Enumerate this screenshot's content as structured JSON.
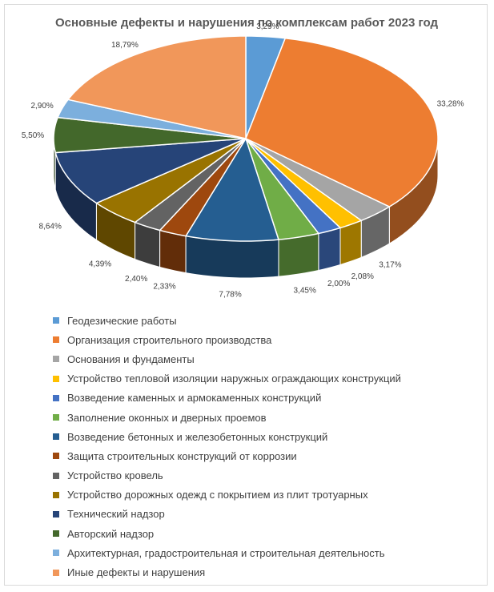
{
  "chart_data": {
    "type": "pie",
    "title": "Основные дефекты и нарушения по комплексам работ 2023 год",
    "legend_position": "bottom",
    "three_d": true,
    "slices": [
      {
        "name": "Геодезические работы",
        "value": 3.29,
        "label": "3,29%",
        "color": "#5b9bd5"
      },
      {
        "name": "Организация строительного производства",
        "value": 33.28,
        "label": "33,28%",
        "color": "#ed7d31"
      },
      {
        "name": "Основания и фундаменты",
        "value": 3.17,
        "label": "3,17%",
        "color": "#a5a5a5"
      },
      {
        "name": "Устройство тепловой изоляции наружных ограждающих конструкций",
        "value": 2.08,
        "label": "2,08%",
        "color": "#ffc000"
      },
      {
        "name": "Возведение каменных и армокаменных конструкций",
        "value": 2.0,
        "label": "2,00%",
        "color": "#4472c4"
      },
      {
        "name": "Заполнение оконных и дверных проемов",
        "value": 3.45,
        "label": "3,45%",
        "color": "#70ad47"
      },
      {
        "name": "Возведение бетонных и железобетонных конструкций",
        "value": 7.78,
        "label": "7,78%",
        "color": "#255e91"
      },
      {
        "name": "Защита строительных конструкций от коррозии",
        "value": 2.33,
        "label": "2,33%",
        "color": "#9e480e"
      },
      {
        "name": "Устройство кровель",
        "value": 2.4,
        "label": "2,40%",
        "color": "#636363"
      },
      {
        "name": "Устройство дорожных одежд с покрытием из плит тротуарных",
        "value": 4.39,
        "label": "4,39%",
        "color": "#997300"
      },
      {
        "name": "Технический надзор",
        "value": 8.64,
        "label": "8,64%",
        "color": "#264478"
      },
      {
        "name": "Авторский надзор",
        "value": 5.5,
        "label": "5,50%",
        "color": "#43682b"
      },
      {
        "name": "Архитектурная, градостроительная и строительная деятельность",
        "value": 2.9,
        "label": "2,90%",
        "color": "#7cafdd"
      },
      {
        "name": "Иные дефекты и нарушения",
        "value": 18.79,
        "label": "18,79%",
        "color": "#f1975a"
      }
    ]
  }
}
